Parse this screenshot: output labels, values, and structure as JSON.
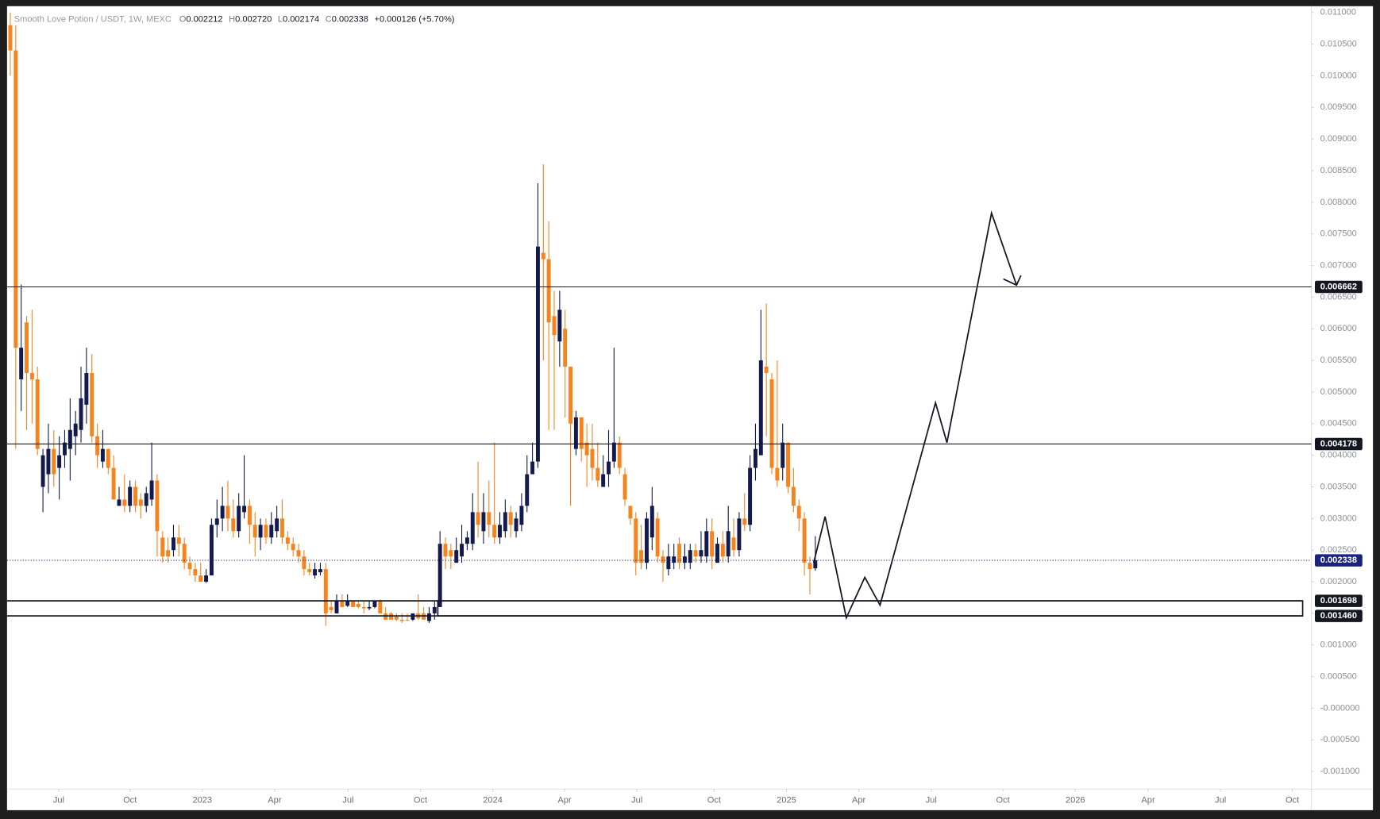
{
  "chart_data": {
    "type": "candlestick",
    "header": {
      "title": "Smooth Love Potion / USDT, 1W, MEXC",
      "open_label": "O",
      "open": "0.002212",
      "high_label": "H",
      "high": "0.002720",
      "low_label": "L",
      "low": "0.002174",
      "close_label": "C",
      "close": "0.002338",
      "change": "+0.000126 (+5.70%)"
    },
    "up_color": "#131a4e",
    "down_color": "#f5841f",
    "grid": false,
    "xlim": [
      -0.6,
      239.2
    ],
    "ylim": [
      -0.00125,
      0.0111
    ],
    "xticks": [
      {
        "value": 8.9,
        "label": "Jul"
      },
      {
        "value": 22.0,
        "label": "Oct"
      },
      {
        "value": 35.3,
        "label": "2023"
      },
      {
        "value": 48.6,
        "label": "Apr"
      },
      {
        "value": 62.1,
        "label": "Jul"
      },
      {
        "value": 75.4,
        "label": "Oct"
      },
      {
        "value": 88.7,
        "label": "2024"
      },
      {
        "value": 101.9,
        "label": "Apr"
      },
      {
        "value": 115.2,
        "label": "Jul"
      },
      {
        "value": 129.4,
        "label": "Oct"
      },
      {
        "value": 142.7,
        "label": "2025"
      },
      {
        "value": 156.0,
        "label": "Apr"
      },
      {
        "value": 169.3,
        "label": "Jul"
      },
      {
        "value": 182.5,
        "label": "Oct"
      },
      {
        "value": 195.8,
        "label": "2026"
      },
      {
        "value": 209.2,
        "label": "Apr"
      },
      {
        "value": 222.5,
        "label": "Jul"
      },
      {
        "value": 235.7,
        "label": "Oct"
      }
    ],
    "yticks": [
      {
        "value": 0.011,
        "label": "0.011000"
      },
      {
        "value": 0.0105,
        "label": "0.010500"
      },
      {
        "value": 0.01,
        "label": "0.010000"
      },
      {
        "value": 0.0095,
        "label": "0.009500"
      },
      {
        "value": 0.009,
        "label": "0.009000"
      },
      {
        "value": 0.0085,
        "label": "0.008500"
      },
      {
        "value": 0.008,
        "label": "0.008000"
      },
      {
        "value": 0.0075,
        "label": "0.007500"
      },
      {
        "value": 0.007,
        "label": "0.007000"
      },
      {
        "value": 0.0065,
        "label": "0.006500"
      },
      {
        "value": 0.006,
        "label": "0.006000"
      },
      {
        "value": 0.0055,
        "label": "0.005500"
      },
      {
        "value": 0.005,
        "label": "0.005000"
      },
      {
        "value": 0.0045,
        "label": "0.004500"
      },
      {
        "value": 0.004,
        "label": "0.004000"
      },
      {
        "value": 0.0035,
        "label": "0.003500"
      },
      {
        "value": 0.003,
        "label": "0.003000"
      },
      {
        "value": 0.0025,
        "label": "0.002500"
      },
      {
        "value": 0.002,
        "label": "0.002000"
      },
      {
        "value": 0.0015,
        "label": "0.001500"
      },
      {
        "value": 0.001,
        "label": "0.001000"
      },
      {
        "value": 0.0005,
        "label": "0.000500"
      },
      {
        "value": 0,
        "label": "-0.000000"
      },
      {
        "value": -0.0005,
        "label": "-0.000500"
      },
      {
        "value": -0.001,
        "label": "-0.001000"
      }
    ],
    "candles": {
      "open": [
        0.0108,
        0.0104,
        0.0052,
        0.0061,
        0.0053,
        0.0052,
        0.0035,
        0.0037,
        0.0041,
        0.0038,
        0.004,
        0.0041,
        0.0043,
        0.0044,
        0.0048,
        0.0053,
        0.0043,
        0.0039,
        0.0041,
        0.0038,
        0.0032,
        0.0033,
        0.0032,
        0.0035,
        0.0033,
        0.0032,
        0.0033,
        0.0036,
        0.0027,
        0.0025,
        0.0025,
        0.0027,
        0.0026,
        0.0023,
        0.0022,
        0.0021,
        0.002,
        0.0021,
        0.0029,
        0.003,
        0.0032,
        0.003,
        0.0028,
        0.0031,
        0.0032,
        0.0029,
        0.0027,
        0.0029,
        0.0027,
        0.0028,
        0.003,
        0.0027,
        0.0026,
        0.0025,
        0.0024,
        0.0022,
        0.0021,
        0.00215,
        0.0022,
        0.0016,
        0.0015,
        0.0017,
        0.00162,
        0.0017,
        0.00165,
        0.0016,
        0.00158,
        0.0016,
        0.0017,
        0.0015,
        0.0015,
        0.00145,
        0.0014,
        0.0014,
        0.0014,
        0.0015,
        0.0015,
        0.00138,
        0.0015,
        0.0016,
        0.0026,
        0.0025,
        0.0023,
        0.0024,
        0.0026,
        0.0026,
        0.0031,
        0.0028,
        0.0031,
        0.0029,
        0.0027,
        0.0028,
        0.0031,
        0.0028,
        0.0029,
        0.0032,
        0.0037,
        0.0039,
        0.0072,
        0.0071,
        0.0062,
        0.0058,
        0.006,
        0.0054,
        0.0041,
        0.0046,
        0.0042,
        0.0041,
        0.0038,
        0.0035,
        0.0037,
        0.0039,
        0.0042,
        0.0037,
        0.0032,
        0.003,
        0.0025,
        0.0023,
        0.0027,
        0.003,
        0.0024,
        0.0022,
        0.0023,
        0.0026,
        0.0023,
        0.0023,
        0.0025,
        0.0024,
        0.0024,
        0.0028,
        0.0023,
        0.0026,
        0.0024,
        0.0027,
        0.0025,
        0.003,
        0.0029,
        0.0038,
        0.004,
        0.0054,
        0.0052,
        0.0038,
        0.0038,
        0.0042,
        0.0035,
        0.0032,
        0.003,
        0.0023,
        0.002212
      ],
      "high": [
        0.011,
        0.0108,
        0.0067,
        0.0062,
        0.0063,
        0.0054,
        0.0041,
        0.0045,
        0.0044,
        0.0043,
        0.0044,
        0.0049,
        0.0047,
        0.0054,
        0.0057,
        0.0056,
        0.0045,
        0.0044,
        0.0041,
        0.004,
        0.0035,
        0.0037,
        0.0036,
        0.0036,
        0.0034,
        0.0035,
        0.0042,
        0.0037,
        0.0028,
        0.0027,
        0.0029,
        0.0029,
        0.0027,
        0.0024,
        0.0023,
        0.0023,
        0.0022,
        0.003,
        0.0033,
        0.0035,
        0.0036,
        0.0033,
        0.0034,
        0.004,
        0.0033,
        0.0031,
        0.003,
        0.003,
        0.0031,
        0.0032,
        0.0033,
        0.0028,
        0.0027,
        0.0026,
        0.0025,
        0.0023,
        0.0023,
        0.0023,
        0.0023,
        0.0017,
        0.0018,
        0.0018,
        0.0018,
        0.0017,
        0.0017,
        0.0017,
        0.0017,
        0.0017,
        0.00172,
        0.0016,
        0.00152,
        0.0015,
        0.0015,
        0.0015,
        0.0015,
        0.0018,
        0.0016,
        0.0016,
        0.0017,
        0.0028,
        0.0027,
        0.0026,
        0.0027,
        0.0029,
        0.0028,
        0.0034,
        0.0039,
        0.0034,
        0.0036,
        0.0042,
        0.0031,
        0.0033,
        0.0032,
        0.0031,
        0.0034,
        0.004,
        0.0042,
        0.0083,
        0.0086,
        0.0077,
        0.0066,
        0.0066,
        0.0063,
        0.0054,
        0.0047,
        0.0046,
        0.0045,
        0.0045,
        0.0042,
        0.004,
        0.0044,
        0.0057,
        0.0043,
        0.0038,
        0.0032,
        0.0031,
        0.0029,
        0.0031,
        0.0035,
        0.0031,
        0.0025,
        0.0026,
        0.0026,
        0.0027,
        0.0026,
        0.0026,
        0.0026,
        0.0028,
        0.003,
        0.003,
        0.0027,
        0.0028,
        0.0032,
        0.003,
        0.0031,
        0.0034,
        0.004,
        0.0045,
        0.0063,
        0.0064,
        0.0053,
        0.0055,
        0.0045,
        0.0042,
        0.0038,
        0.0033,
        0.0031,
        0.0024,
        0.00272
      ],
      "low": [
        0.01,
        0.0041,
        0.0047,
        0.0044,
        0.0045,
        0.004,
        0.0031,
        0.0034,
        0.0035,
        0.0033,
        0.0038,
        0.0036,
        0.004,
        0.0042,
        0.0045,
        0.0042,
        0.0038,
        0.0038,
        0.0037,
        0.0033,
        0.0032,
        0.0031,
        0.0031,
        0.0031,
        0.003,
        0.0031,
        0.0032,
        0.0024,
        0.0023,
        0.0023,
        0.0024,
        0.0024,
        0.0022,
        0.0021,
        0.002,
        0.002,
        0.00198,
        0.0021,
        0.0027,
        0.0028,
        0.0028,
        0.0027,
        0.0027,
        0.003,
        0.0026,
        0.0024,
        0.0025,
        0.0026,
        0.0026,
        0.0027,
        0.0026,
        0.0025,
        0.0024,
        0.0023,
        0.0021,
        0.0021,
        0.00205,
        0.0021,
        0.0013,
        0.0015,
        0.0015,
        0.0016,
        0.0016,
        0.0016,
        0.00158,
        0.0015,
        0.00155,
        0.00158,
        0.0015,
        0.0014,
        0.0014,
        0.00138,
        0.00135,
        0.00138,
        0.00138,
        0.0014,
        0.0014,
        0.00135,
        0.0014,
        0.0016,
        0.0022,
        0.0022,
        0.0023,
        0.0023,
        0.0025,
        0.0025,
        0.0027,
        0.0026,
        0.0027,
        0.0026,
        0.0026,
        0.0027,
        0.0027,
        0.0027,
        0.0028,
        0.0031,
        0.0037,
        0.0038,
        0.0055,
        0.0044,
        0.0044,
        0.0054,
        0.0046,
        0.0032,
        0.004,
        0.0039,
        0.0035,
        0.0036,
        0.0035,
        0.0035,
        0.0035,
        0.0038,
        0.0037,
        0.0032,
        0.0029,
        0.0021,
        0.0022,
        0.0022,
        0.0025,
        0.0023,
        0.002,
        0.0021,
        0.0022,
        0.0022,
        0.0022,
        0.0022,
        0.0023,
        0.0023,
        0.0023,
        0.0022,
        0.0023,
        0.0023,
        0.0023,
        0.0024,
        0.0024,
        0.0028,
        0.0028,
        0.0036,
        0.004,
        0.0043,
        0.0037,
        0.0035,
        0.0036,
        0.0034,
        0.0031,
        0.0028,
        0.0021,
        0.0018,
        0.002174
      ],
      "close": [
        0.0104,
        0.0057,
        0.0057,
        0.0053,
        0.0052,
        0.0041,
        0.004,
        0.0041,
        0.0037,
        0.004,
        0.0042,
        0.0044,
        0.0045,
        0.0049,
        0.0053,
        0.0043,
        0.004,
        0.0041,
        0.0038,
        0.0033,
        0.0033,
        0.0032,
        0.0035,
        0.0032,
        0.0032,
        0.0034,
        0.0036,
        0.0028,
        0.0024,
        0.0024,
        0.0027,
        0.0026,
        0.0023,
        0.0022,
        0.0021,
        0.002,
        0.0021,
        0.0029,
        0.003,
        0.0032,
        0.003,
        0.0028,
        0.0032,
        0.0032,
        0.0029,
        0.0027,
        0.0029,
        0.0027,
        0.0029,
        0.003,
        0.0027,
        0.0026,
        0.0025,
        0.0024,
        0.0022,
        0.00215,
        0.0022,
        0.0022,
        0.0015,
        0.00155,
        0.0017,
        0.0016,
        0.0017,
        0.0016,
        0.0016,
        0.00158,
        0.0016,
        0.0017,
        0.0015,
        0.0014,
        0.0014,
        0.0014,
        0.00138,
        0.00139,
        0.0015,
        0.00142,
        0.0014,
        0.0015,
        0.0016,
        0.0026,
        0.0024,
        0.0024,
        0.0025,
        0.0026,
        0.0027,
        0.0031,
        0.0029,
        0.0031,
        0.0029,
        0.0027,
        0.0029,
        0.0031,
        0.0029,
        0.003,
        0.0032,
        0.0037,
        0.0039,
        0.0073,
        0.0071,
        0.0061,
        0.0059,
        0.0063,
        0.0054,
        0.0045,
        0.0046,
        0.0041,
        0.004,
        0.0038,
        0.0036,
        0.0037,
        0.0039,
        0.0042,
        0.0038,
        0.0033,
        0.003,
        0.0023,
        0.0023,
        0.003,
        0.0032,
        0.0024,
        0.0023,
        0.0024,
        0.0024,
        0.0023,
        0.0024,
        0.0025,
        0.0024,
        0.0025,
        0.0028,
        0.0024,
        0.0026,
        0.0024,
        0.0028,
        0.0025,
        0.003,
        0.0029,
        0.0038,
        0.0041,
        0.0055,
        0.0053,
        0.0038,
        0.0036,
        0.0042,
        0.0035,
        0.0032,
        0.003,
        0.0023,
        0.0022,
        0.002338
      ]
    },
    "levels": [
      {
        "value": 0.006662,
        "label": "0.006662"
      },
      {
        "value": 0.004178,
        "label": "0.004178"
      }
    ],
    "last_price": {
      "value": 0.002338,
      "label": "0.002338",
      "color": "#1a237e"
    },
    "zone": {
      "top": {
        "value": 0.001698,
        "label": "0.001698"
      },
      "bottom": {
        "value": 0.00146,
        "label": "0.001460"
      },
      "x": [
        78.6,
        237.6
      ]
    },
    "projection": {
      "x": [
        147.7,
        149.8,
        153.7,
        157.1,
        159.9,
        170.1,
        172.2,
        180.4,
        185.0
      ],
      "y": [
        0.0023,
        0.00303,
        0.00143,
        0.00207,
        0.00163,
        0.00483,
        0.0042,
        0.00783,
        0.00669
      ]
    }
  }
}
